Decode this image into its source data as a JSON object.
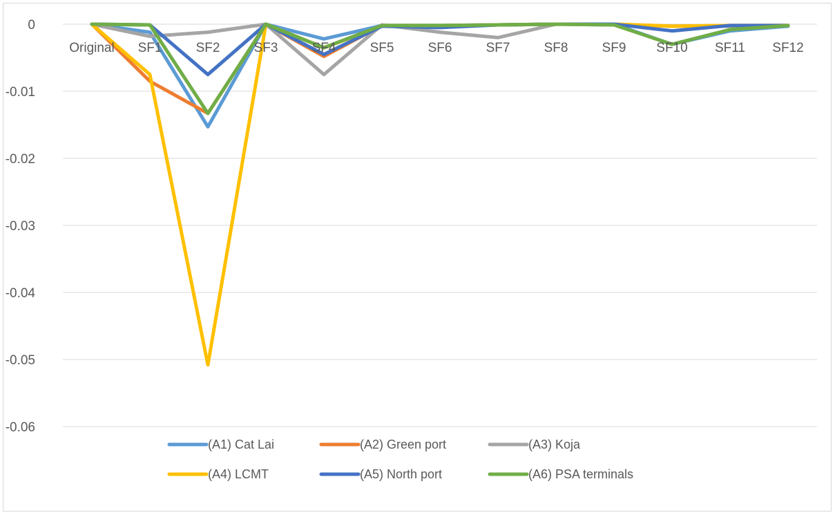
{
  "chart_data": {
    "type": "line",
    "title": "",
    "xlabel": "",
    "ylabel": "",
    "categories": [
      "Original",
      "SF1",
      "SF2",
      "SF3",
      "SF4",
      "SF5",
      "SF6",
      "SF7",
      "SF8",
      "SF9",
      "SF10",
      "SF11",
      "SF12"
    ],
    "ylim": [
      -0.06,
      0
    ],
    "yticks": [
      0,
      -0.01,
      -0.02,
      -0.03,
      -0.04,
      -0.05,
      -0.06
    ],
    "ytick_labels": [
      "0",
      "-0.01",
      "-0.02",
      "-0.03",
      "-0.04",
      "-0.05",
      "-0.06"
    ],
    "grid": "horizontal",
    "legend": "bottom",
    "series": [
      {
        "name": "(A1) Cat Lai",
        "color": "#5b9bd5",
        "values": [
          0,
          -0.0012,
          -0.0153,
          0,
          -0.0022,
          -0.0002,
          -0.0002,
          -0.0001,
          0,
          0,
          -0.003,
          -0.001,
          -0.0003
        ]
      },
      {
        "name": "(A2) Green port",
        "color": "#ed7d31",
        "values": [
          0,
          -0.0085,
          -0.0133,
          0,
          -0.0048,
          -0.0002,
          -0.0002,
          -0.0001,
          0,
          0,
          -0.0003,
          -0.0002,
          -0.0002
        ]
      },
      {
        "name": "(A3) Koja",
        "color": "#a5a5a5",
        "values": [
          0,
          -0.0018,
          -0.0012,
          0,
          -0.0075,
          -0.0001,
          -0.0012,
          -0.002,
          0,
          -0.0001,
          -0.0003,
          -0.0003,
          -0.0002
        ]
      },
      {
        "name": "(A4) LCMT",
        "color": "#ffc000",
        "values": [
          0,
          -0.0075,
          -0.0508,
          0,
          -0.0035,
          -0.0003,
          -0.0003,
          -0.0001,
          0,
          0,
          -0.0003,
          -0.0002,
          -0.0002
        ]
      },
      {
        "name": "(A5) North port",
        "color": "#4472c4",
        "values": [
          0,
          -0.0001,
          -0.0075,
          0,
          -0.0045,
          -0.0003,
          -0.0005,
          -0.0001,
          0,
          0,
          -0.001,
          -0.0002,
          -0.0002
        ]
      },
      {
        "name": "(A6) PSA terminals",
        "color": "#70ad47",
        "values": [
          0,
          -0.0001,
          -0.0133,
          0,
          -0.0035,
          -0.0002,
          -0.0002,
          -0.0001,
          0,
          -0.0001,
          -0.003,
          -0.0008,
          -0.0002
        ]
      }
    ]
  }
}
